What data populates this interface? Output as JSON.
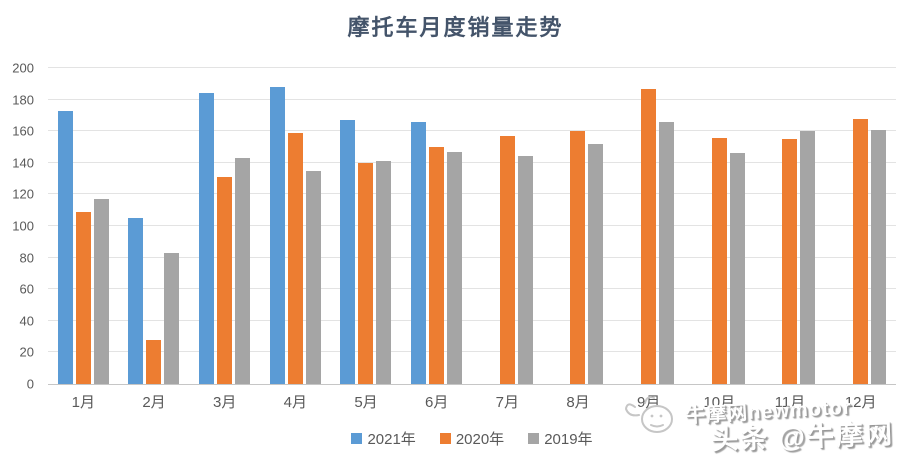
{
  "title": "摩托车月度销量走势",
  "colors": {
    "series_2021": "#5B9BD5",
    "series_2020": "#ED7D31",
    "series_2019": "#A5A5A5",
    "title_text": "#44546A",
    "axis_text": "#595959",
    "gridline": "#E3E3E3"
  },
  "chart_data": {
    "type": "bar",
    "title": "摩托车月度销量走势",
    "categories": [
      "1月",
      "2月",
      "3月",
      "4月",
      "5月",
      "6月",
      "7月",
      "8月",
      "9月",
      "10月",
      "11月",
      "12月"
    ],
    "series": [
      {
        "name": "2021年",
        "color": "#5B9BD5",
        "values": [
          173,
          105,
          184,
          188,
          167,
          166,
          null,
          null,
          null,
          null,
          null,
          null
        ]
      },
      {
        "name": "2020年",
        "color": "#ED7D31",
        "values": [
          109,
          28,
          131,
          159,
          140,
          150,
          157,
          160,
          187,
          156,
          155,
          168
        ]
      },
      {
        "name": "2019年",
        "color": "#A5A5A5",
        "values": [
          117,
          83,
          143,
          135,
          141,
          147,
          144,
          152,
          166,
          146,
          160,
          161
        ]
      }
    ],
    "xlabel": "",
    "ylabel": "",
    "ylim": [
      0,
      200
    ],
    "ytick_step": 20,
    "grid": true,
    "legend_position": "bottom-center"
  },
  "watermark": {
    "logo_line": "牛摩网newmotor",
    "brand_line": "头条 @牛摩网"
  }
}
